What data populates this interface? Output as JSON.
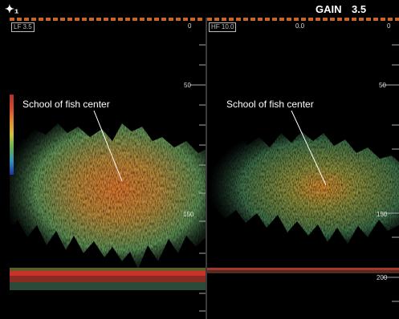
{
  "topbar": {
    "range_indicator": "✦₁",
    "gain_label": "GAIN",
    "gain_value": "3.5"
  },
  "panels": [
    {
      "freq_tag": "LF 3.5",
      "scale_labels": [
        "0",
        "50",
        "150"
      ],
      "fish_label": "School of fish center"
    },
    {
      "freq_tag": "HF 10.0",
      "header_value": "0.0",
      "scale_labels": [
        "0",
        "50",
        "150",
        "200"
      ],
      "fish_label": "School of fish center"
    }
  ],
  "colors": {
    "background": "#000000",
    "bottom_echo": "#c8332a",
    "fish_echo_strong": "#d96a2a",
    "fish_echo_weak": "#3f7d4a",
    "text": "#ffffff"
  }
}
